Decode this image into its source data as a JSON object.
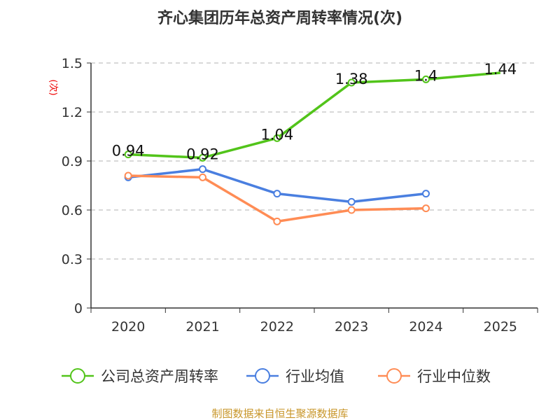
{
  "chart_data": {
    "type": "line",
    "title": "齐心集团历年总资产周转率情况(次)",
    "ylabel": "(次)",
    "xlabel": "",
    "categories": [
      "2020",
      "2021",
      "2022",
      "2023",
      "2024",
      "2025"
    ],
    "ylim": [
      0,
      1.5
    ],
    "yticks": [
      "0",
      "0.3",
      "0.6",
      "0.9",
      "1.2",
      "1.5"
    ],
    "ytick_values": [
      0,
      0.3,
      0.6,
      0.9,
      1.2,
      1.5
    ],
    "grid": true,
    "legend_position": "bottom",
    "series": [
      {
        "name": "公司总资产周转率",
        "color": "#52c41a",
        "values": [
          0.94,
          0.92,
          1.04,
          1.38,
          1.4,
          1.44
        ],
        "labels": [
          "0.94",
          "0.92",
          "1.04",
          "1.38",
          "1.4",
          "1.44"
        ]
      },
      {
        "name": "行业均值",
        "color": "#4a7fe0",
        "values": [
          0.8,
          0.85,
          0.7,
          0.65,
          0.7,
          null
        ]
      },
      {
        "name": "行业中位数",
        "color": "#ff8c55",
        "values": [
          0.81,
          0.8,
          0.53,
          0.6,
          0.61,
          null
        ]
      }
    ],
    "source": "制图数据来自恒生聚源数据库"
  }
}
